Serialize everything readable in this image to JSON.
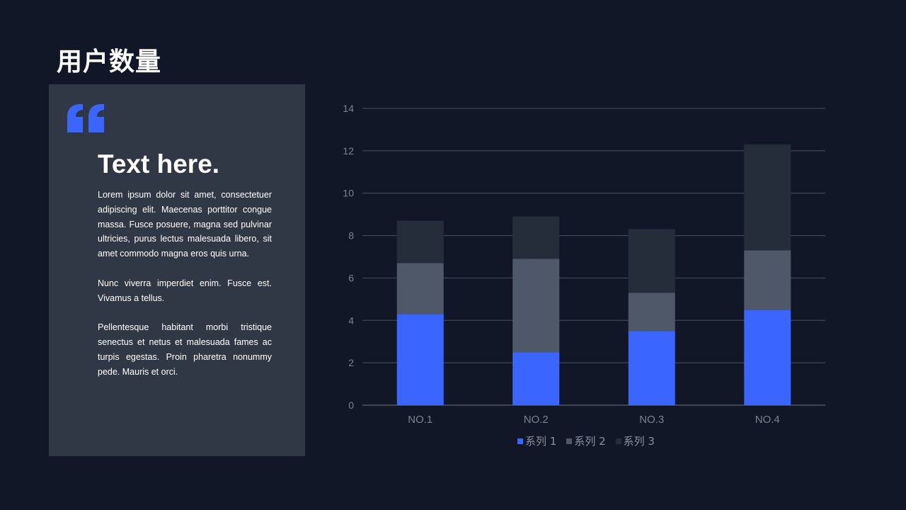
{
  "page": {
    "title": "用户数量"
  },
  "card": {
    "heading": "Text here.",
    "paragraphs": [
      "Lorem ipsum dolor sit amet, consectetuer adipiscing elit. Maecenas porttitor congue massa. Fusce posuere, magna sed pulvinar ultricies, purus lectus malesuada libero, sit amet commodo magna eros quis urna.",
      "Nunc viverra imperdiet enim. Fusce est. Vivamus a tellus.",
      "Pellentesque habitant morbi tristique senectus et netus et malesuada fames ac turpis egestas. Proin pharetra nonummy pede. Mauris et orci."
    ],
    "quote_icon": "quote-mark-icon",
    "quote_color": "#3a66ff"
  },
  "chart_data": {
    "type": "bar",
    "stacked": true,
    "categories": [
      "NO.1",
      "NO.2",
      "NO.3",
      "NO.4"
    ],
    "series": [
      {
        "name": "系列 1",
        "values": [
          4.3,
          2.5,
          3.5,
          4.5
        ],
        "color": "#3a66ff"
      },
      {
        "name": "系列 2",
        "values": [
          2.4,
          4.4,
          1.8,
          2.8
        ],
        "color": "#4e5868"
      },
      {
        "name": "系列 3",
        "values": [
          2.0,
          2.0,
          3.0,
          5.0
        ],
        "color": "#252d3b"
      }
    ],
    "yticks": [
      "0",
      "2",
      "4",
      "6",
      "8",
      "10",
      "12",
      "14"
    ],
    "ylim": [
      0,
      14
    ],
    "grid": true,
    "legend_position": "bottom",
    "xlabel": "",
    "ylabel": ""
  }
}
